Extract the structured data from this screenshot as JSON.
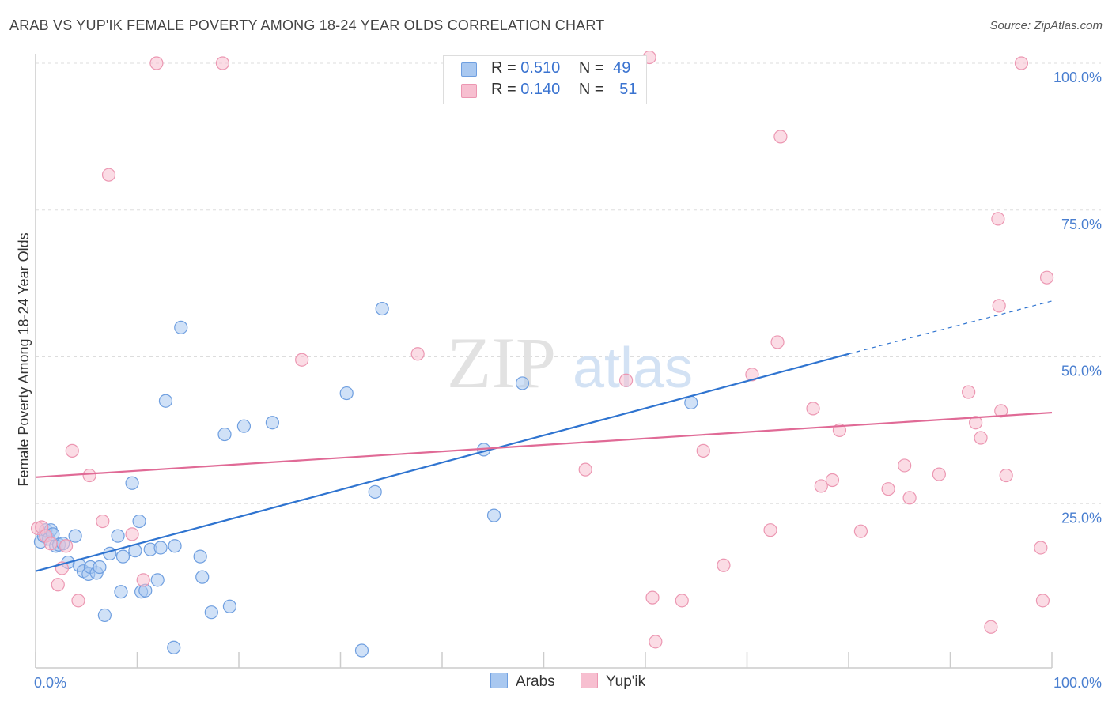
{
  "title": "ARAB VS YUP'IK FEMALE POVERTY AMONG 18-24 YEAR OLDS CORRELATION CHART",
  "source": "Source: ZipAtlas.com",
  "watermark": {
    "zip": "ZIP",
    "atlas": "atlas"
  },
  "legend": {
    "arabs": {
      "r_label": "R =",
      "r": "0.510",
      "n_label": "N =",
      "n": "49"
    },
    "yupik": {
      "r_label": "R =",
      "r": "0.140",
      "n_label": "N =",
      "n": "51"
    }
  },
  "bottom_legend": {
    "arabs": "Arabs",
    "yupik": "Yup'ik"
  },
  "colors": {
    "arabs_fill": "#a9c8f0",
    "arabs_stroke": "#6f9fe0",
    "arabs_line": "#2f74d0",
    "yupik_fill": "#f7bfd0",
    "yupik_stroke": "#ec97b2",
    "yupik_line": "#e06a96",
    "tick_text": "#4a7fd0",
    "grid": "#dddddd"
  },
  "chart_data": {
    "type": "scatter",
    "title": "ARAB VS YUP'IK FEMALE POVERTY AMONG 18-24 YEAR OLDS CORRELATION CHART",
    "xlabel": "",
    "ylabel": "Female Poverty Among 18-24 Year Olds",
    "xlim": [
      0,
      100
    ],
    "ylim": [
      0,
      100
    ],
    "x_tick_labels": [
      "0.0%",
      "100.0%"
    ],
    "y_ticks": [
      25,
      50,
      75,
      100
    ],
    "y_tick_labels": [
      "25.0%",
      "50.0%",
      "75.0%",
      "100.0%"
    ],
    "grid": true,
    "legend_position": "top-center",
    "series": [
      {
        "name": "Arabs",
        "R": 0.51,
        "N": 49,
        "trend": {
          "x": [
            0,
            80
          ],
          "y": [
            13.5,
            50.5
          ],
          "dashed_extension_to": [
            100,
            59.5
          ]
        },
        "points": [
          [
            0.5,
            18.5
          ],
          [
            0.8,
            19.5
          ],
          [
            1.0,
            20.5
          ],
          [
            1.3,
            19.0
          ],
          [
            1.5,
            20.5
          ],
          [
            1.7,
            19.8
          ],
          [
            2.0,
            17.8
          ],
          [
            2.3,
            18.0
          ],
          [
            2.7,
            18.2
          ],
          [
            3.2,
            15.0
          ],
          [
            3.9,
            19.5
          ],
          [
            4.3,
            14.5
          ],
          [
            4.7,
            13.5
          ],
          [
            5.2,
            13.0
          ],
          [
            5.4,
            14.2
          ],
          [
            6.0,
            13.2
          ],
          [
            6.3,
            14.2
          ],
          [
            6.8,
            6.0
          ],
          [
            7.3,
            16.5
          ],
          [
            8.1,
            19.5
          ],
          [
            8.4,
            10.0
          ],
          [
            8.6,
            16.0
          ],
          [
            9.5,
            28.5
          ],
          [
            9.8,
            17.0
          ],
          [
            10.2,
            22.0
          ],
          [
            10.4,
            10.0
          ],
          [
            10.8,
            10.2
          ],
          [
            11.3,
            17.2
          ],
          [
            12.0,
            12.0
          ],
          [
            12.3,
            17.5
          ],
          [
            12.8,
            42.5
          ],
          [
            13.6,
            0.5
          ],
          [
            13.7,
            17.8
          ],
          [
            14.3,
            55.0
          ],
          [
            16.2,
            16.0
          ],
          [
            16.4,
            12.5
          ],
          [
            17.3,
            6.5
          ],
          [
            18.6,
            36.8
          ],
          [
            19.1,
            7.5
          ],
          [
            20.5,
            38.2
          ],
          [
            23.3,
            38.8
          ],
          [
            30.6,
            43.8
          ],
          [
            32.1,
            0.0
          ],
          [
            33.4,
            27.0
          ],
          [
            34.1,
            58.2
          ],
          [
            44.1,
            34.2
          ],
          [
            45.1,
            23.0
          ],
          [
            47.9,
            45.5
          ],
          [
            64.5,
            42.2
          ]
        ]
      },
      {
        "name": "Yup'ik",
        "R": 0.14,
        "N": 51,
        "trend": {
          "x": [
            0,
            100
          ],
          "y": [
            29.5,
            40.5
          ]
        },
        "points": [
          [
            0.2,
            20.8
          ],
          [
            0.6,
            21.0
          ],
          [
            1.0,
            19.5
          ],
          [
            1.5,
            18.2
          ],
          [
            2.2,
            11.2
          ],
          [
            2.6,
            14.0
          ],
          [
            3.0,
            17.8
          ],
          [
            3.6,
            34.0
          ],
          [
            4.2,
            8.5
          ],
          [
            5.3,
            29.8
          ],
          [
            6.6,
            22.0
          ],
          [
            7.2,
            81.0
          ],
          [
            9.5,
            19.8
          ],
          [
            10.6,
            12.0
          ],
          [
            11.9,
            100.0
          ],
          [
            18.4,
            100.0
          ],
          [
            26.2,
            49.5
          ],
          [
            37.6,
            50.5
          ],
          [
            54.1,
            30.8
          ],
          [
            58.1,
            46.0
          ],
          [
            60.4,
            101.0
          ],
          [
            60.7,
            9.0
          ],
          [
            61.0,
            1.5
          ],
          [
            63.6,
            8.5
          ],
          [
            65.7,
            34.0
          ],
          [
            67.7,
            14.5
          ],
          [
            70.5,
            47.0
          ],
          [
            72.3,
            20.5
          ],
          [
            73.0,
            52.5
          ],
          [
            73.3,
            87.5
          ],
          [
            76.5,
            41.2
          ],
          [
            77.3,
            28.0
          ],
          [
            78.4,
            29.0
          ],
          [
            79.1,
            37.5
          ],
          [
            81.2,
            20.3
          ],
          [
            83.9,
            27.5
          ],
          [
            85.5,
            31.5
          ],
          [
            86.0,
            26.0
          ],
          [
            88.9,
            30.0
          ],
          [
            91.8,
            44.0
          ],
          [
            92.5,
            38.8
          ],
          [
            93.0,
            36.2
          ],
          [
            94.0,
            4.0
          ],
          [
            94.7,
            73.5
          ],
          [
            94.8,
            58.7
          ],
          [
            95.0,
            40.8
          ],
          [
            95.5,
            29.8
          ],
          [
            97.0,
            100.0
          ],
          [
            98.9,
            17.5
          ],
          [
            99.1,
            8.5
          ],
          [
            99.5,
            63.5
          ]
        ]
      }
    ]
  }
}
